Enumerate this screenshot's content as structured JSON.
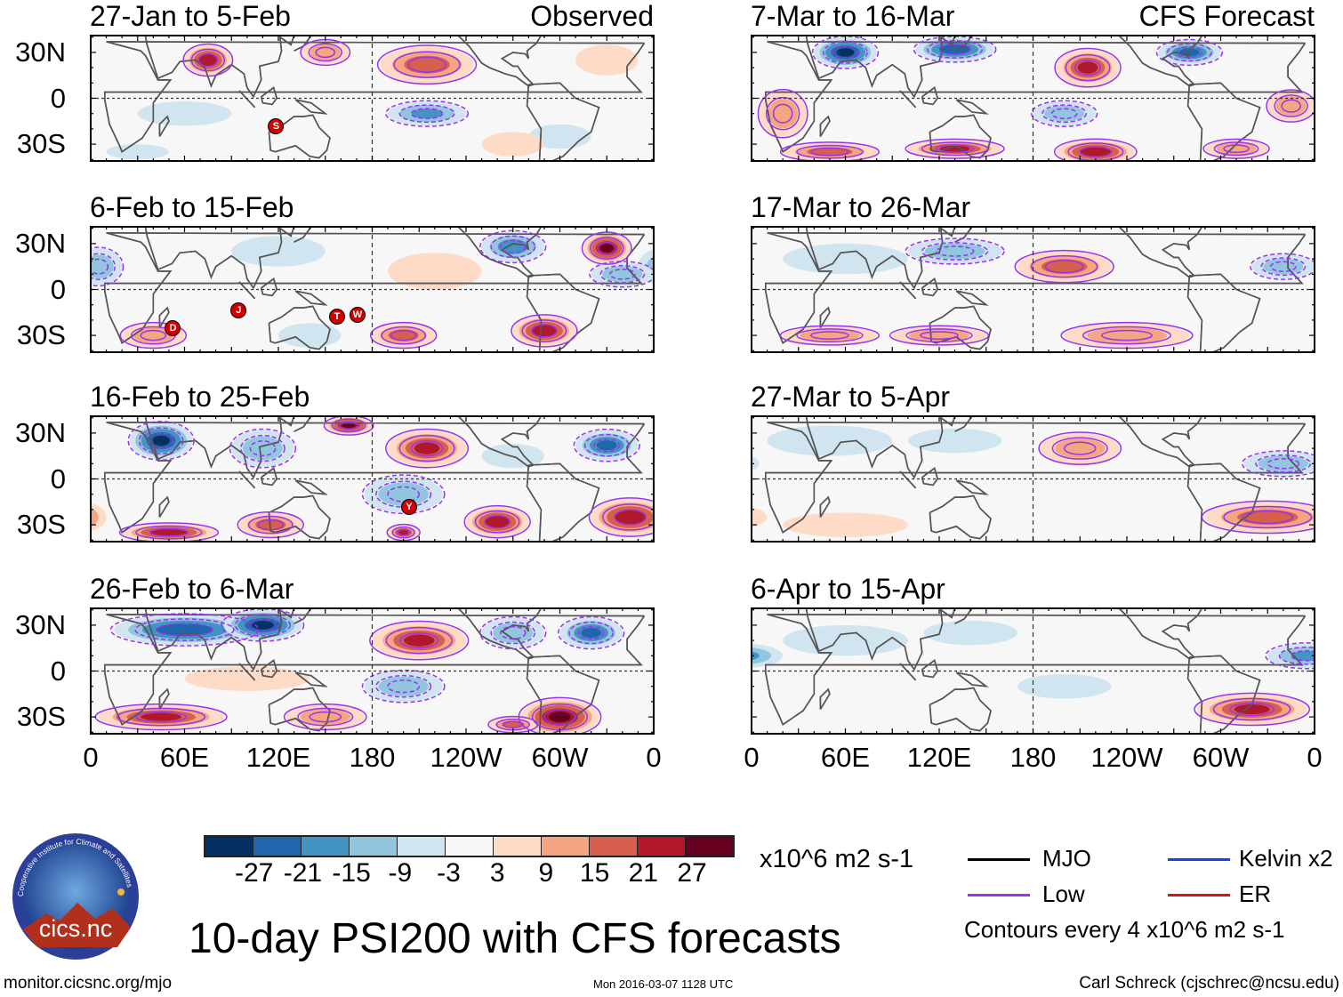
{
  "colors": {
    "bins": [
      "#053061",
      "#2166ac",
      "#4393c3",
      "#92c5de",
      "#d1e5f0",
      "#f7f7f7",
      "#fddbc7",
      "#f4a582",
      "#d6604d",
      "#b2182b",
      "#67001f"
    ],
    "contour_low": "#9933ee",
    "coast": "#555555"
  },
  "header": {
    "observed_label": "Observed",
    "forecast_label": "CFS Forecast"
  },
  "lat_labels": [
    "30N",
    "0",
    "30S"
  ],
  "lon_labels": [
    "0",
    "60E",
    "120E",
    "180",
    "120W",
    "60W",
    "0"
  ],
  "panels": [
    {
      "title": "27-Jan to 5-Feb",
      "blobs": [
        [
          75,
          25,
          27,
          15,
          10
        ],
        [
          150,
          30,
          15,
          15,
          8
        ],
        [
          215,
          22,
          21,
          30,
          12
        ],
        [
          215,
          -10,
          -18,
          25,
          8
        ],
        [
          300,
          -25,
          -9,
          20,
          8
        ],
        [
          60,
          -10,
          -9,
          30,
          8
        ],
        [
          30,
          -35,
          -9,
          20,
          5
        ],
        [
          330,
          25,
          9,
          20,
          10
        ],
        [
          270,
          -30,
          9,
          20,
          8
        ]
      ],
      "storms": [
        {
          "label": "S",
          "lon": 118,
          "lat": -18
        }
      ]
    },
    {
      "title": "6-Feb to 15-Feb",
      "blobs": [
        [
          330,
          27,
          30,
          15,
          10
        ],
        [
          270,
          28,
          -21,
          20,
          10
        ],
        [
          220,
          12,
          9,
          30,
          12
        ],
        [
          290,
          -27,
          27,
          20,
          10
        ],
        [
          200,
          -30,
          21,
          20,
          8
        ],
        [
          40,
          -30,
          15,
          20,
          8
        ],
        [
          5,
          15,
          -15,
          15,
          12
        ],
        [
          340,
          10,
          -15,
          20,
          8
        ],
        [
          120,
          25,
          -9,
          30,
          10
        ],
        [
          140,
          -30,
          -9,
          20,
          8
        ]
      ],
      "storms": [
        {
          "label": "D",
          "lon": 52,
          "lat": -25
        },
        {
          "label": "J",
          "lon": 94,
          "lat": -13
        },
        {
          "label": "T",
          "lon": 157,
          "lat": -17
        },
        {
          "label": "W",
          "lon": 170,
          "lat": -16
        }
      ]
    },
    {
      "title": "16-Feb to 25-Feb",
      "blobs": [
        [
          45,
          25,
          -30,
          20,
          12
        ],
        [
          165,
          35,
          30,
          15,
          6
        ],
        [
          215,
          20,
          24,
          25,
          12
        ],
        [
          330,
          22,
          -24,
          20,
          10
        ],
        [
          200,
          -10,
          -15,
          25,
          12
        ],
        [
          270,
          15,
          -9,
          20,
          8
        ],
        [
          345,
          -25,
          27,
          25,
          12
        ],
        [
          260,
          -28,
          27,
          20,
          10
        ],
        [
          50,
          -35,
          27,
          30,
          6
        ],
        [
          115,
          -30,
          21,
          20,
          8
        ],
        [
          200,
          -35,
          24,
          10,
          5
        ],
        [
          110,
          20,
          -15,
          20,
          12
        ]
      ],
      "storms": [
        {
          "label": "Y",
          "lon": 203,
          "lat": -18
        }
      ]
    },
    {
      "title": "26-Feb to 6-Mar",
      "blobs": [
        [
          60,
          27,
          -27,
          45,
          10
        ],
        [
          110,
          30,
          -30,
          25,
          10
        ],
        [
          210,
          20,
          24,
          30,
          12
        ],
        [
          320,
          25,
          -24,
          20,
          10
        ],
        [
          270,
          25,
          -15,
          20,
          10
        ],
        [
          200,
          -10,
          -15,
          25,
          10
        ],
        [
          300,
          -30,
          30,
          25,
          12
        ],
        [
          45,
          -30,
          24,
          40,
          8
        ],
        [
          150,
          -30,
          15,
          25,
          8
        ],
        [
          270,
          -35,
          21,
          15,
          5
        ],
        [
          100,
          -5,
          9,
          40,
          8
        ]
      ],
      "storms": []
    },
    {
      "title": "7-Mar to 16-Mar",
      "blobs": [
        [
          60,
          30,
          -30,
          20,
          10
        ],
        [
          130,
          32,
          -27,
          25,
          8
        ],
        [
          215,
          20,
          24,
          20,
          12
        ],
        [
          280,
          30,
          -24,
          20,
          8
        ],
        [
          345,
          -5,
          15,
          15,
          10
        ],
        [
          200,
          -10,
          -15,
          20,
          8
        ],
        [
          220,
          -35,
          27,
          25,
          8
        ],
        [
          130,
          -33,
          24,
          30,
          6
        ],
        [
          50,
          -35,
          21,
          30,
          6
        ],
        [
          310,
          -33,
          15,
          20,
          6
        ],
        [
          20,
          -10,
          15,
          15,
          15
        ]
      ],
      "storms": []
    },
    {
      "title": "17-Mar to 26-Mar",
      "blobs": [
        [
          130,
          25,
          -15,
          30,
          8
        ],
        [
          200,
          15,
          21,
          30,
          10
        ],
        [
          340,
          15,
          -15,
          20,
          8
        ],
        [
          240,
          -30,
          15,
          40,
          8
        ],
        [
          50,
          -30,
          15,
          30,
          6
        ],
        [
          120,
          -30,
          15,
          30,
          6
        ],
        [
          60,
          20,
          -9,
          40,
          10
        ]
      ],
      "storms": []
    },
    {
      "title": "27-Mar to 5-Apr",
      "blobs": [
        [
          210,
          20,
          15,
          25,
          10
        ],
        [
          340,
          10,
          -15,
          25,
          8
        ],
        [
          330,
          -25,
          21,
          40,
          10
        ],
        [
          60,
          -30,
          9,
          40,
          8
        ],
        [
          50,
          25,
          -9,
          40,
          10
        ],
        [
          130,
          25,
          -9,
          30,
          8
        ]
      ],
      "storms": []
    },
    {
      "title": "6-Apr to 15-Apr",
      "blobs": [
        [
          355,
          10,
          -18,
          25,
          8
        ],
        [
          320,
          -25,
          24,
          35,
          10
        ],
        [
          60,
          20,
          -9,
          40,
          10
        ],
        [
          200,
          -10,
          -6,
          30,
          8
        ],
        [
          140,
          25,
          -6,
          30,
          8
        ]
      ],
      "storms": []
    }
  ],
  "colorbar": {
    "ticks": [
      "-27",
      "-21",
      "-15",
      "-9",
      "-3",
      "3",
      "9",
      "15",
      "21",
      "27"
    ],
    "units": "x10^6 m2 s-1"
  },
  "legend": {
    "mjo": "MJO",
    "low": "Low",
    "kelvin": "Kelvin x2",
    "er": "ER",
    "contour_note": "Contours every 4 x10^6 m2 s-1",
    "mjo_color": "#000000",
    "low_color": "#9933ee",
    "kelvin_color": "#1144ee",
    "er_color": "#dd1111"
  },
  "title": "10-day PSI200 with CFS forecasts",
  "logo": {
    "text": "cics.nc",
    "ring_text": "Cooperative Institute for Climate and Satellites"
  },
  "footer": {
    "url": "monitor.cicsnc.org/mjo",
    "timestamp": "Mon 2016-03-07 1128 UTC",
    "author": "Carl Schreck (cjschrec@ncsu.edu)"
  }
}
